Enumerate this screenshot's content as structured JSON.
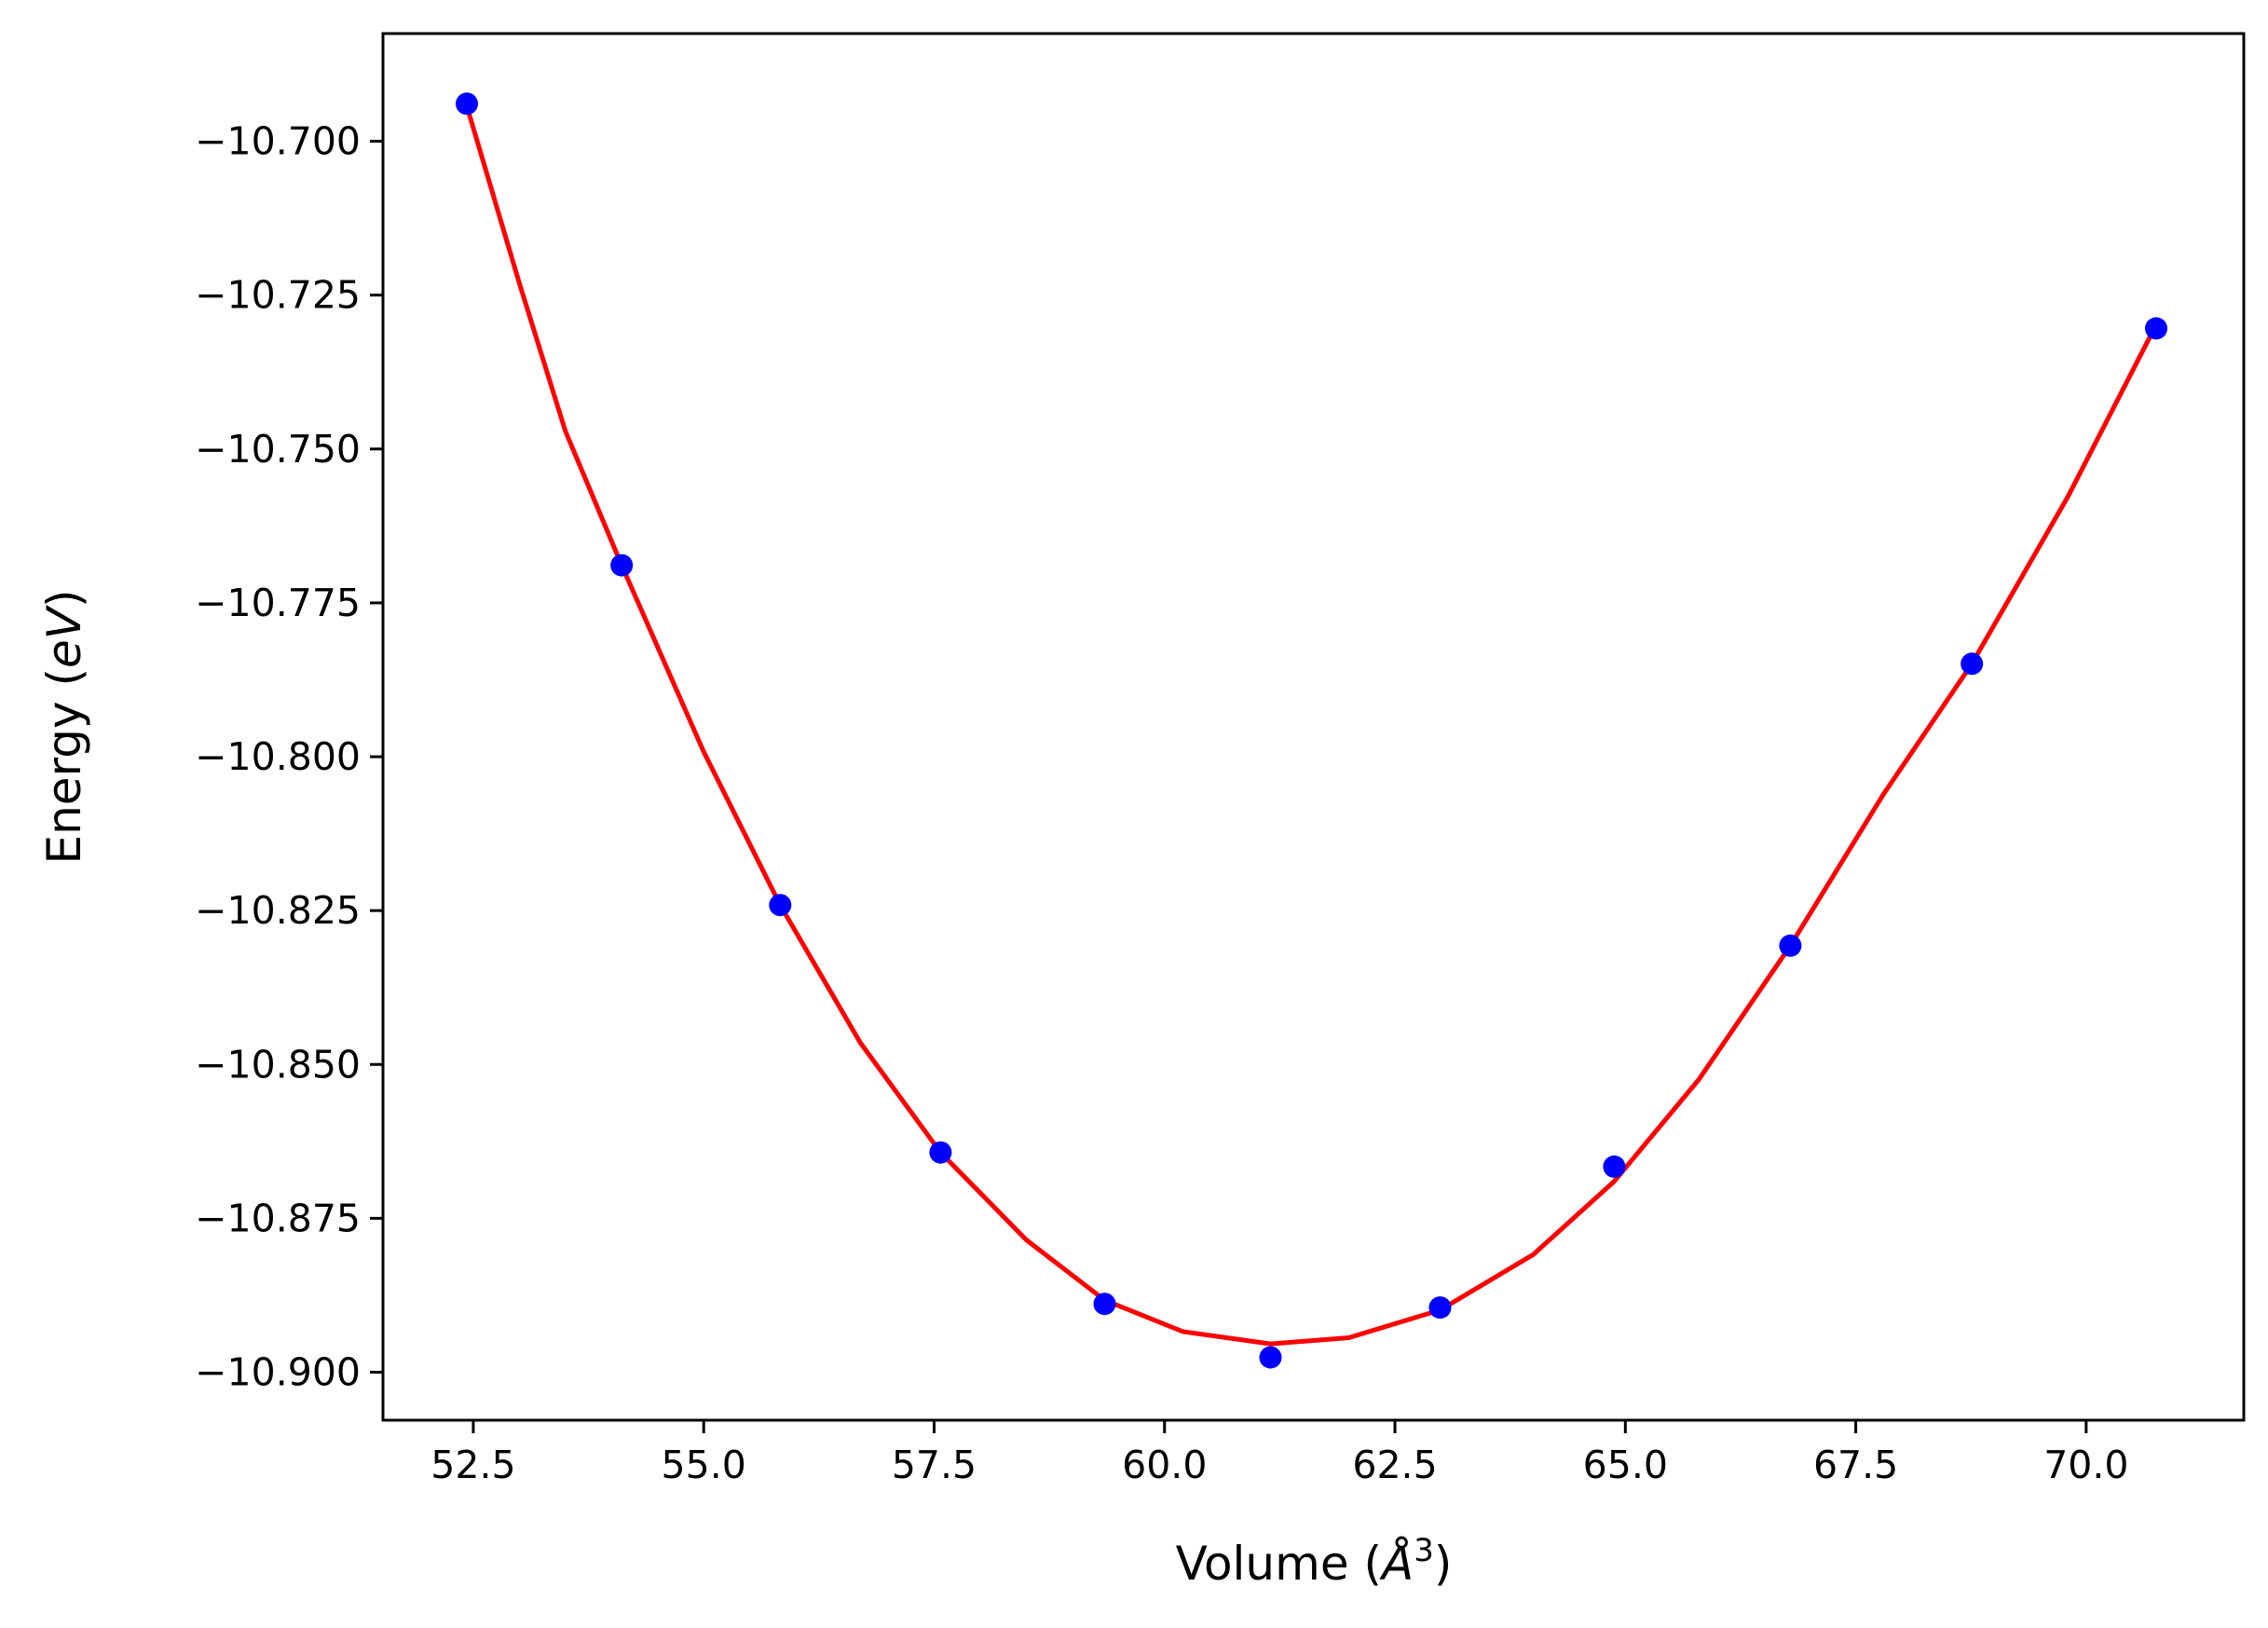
{
  "chart_data": {
    "type": "scatter",
    "title": "",
    "xlabel": "Volume (",
    "xlabel_symbol": "Å",
    "xlabel_sup": "3",
    "xlabel_close": ")",
    "ylabel": "Energy (",
    "ylabel_unit": "eV",
    "ylabel_close": ")",
    "xlim": [
      51.52,
      71.71
    ],
    "ylim": [
      -10.9078,
      -10.6825
    ],
    "xticks": [
      52.5,
      55.0,
      57.5,
      60.0,
      62.5,
      65.0,
      67.5,
      70.0
    ],
    "xtick_labels": [
      "52.5",
      "55.0",
      "57.5",
      "60.0",
      "62.5",
      "65.0",
      "67.5",
      "70.0"
    ],
    "yticks": [
      -10.7,
      -10.725,
      -10.75,
      -10.775,
      -10.8,
      -10.825,
      -10.85,
      -10.875,
      -10.9
    ],
    "ytick_labels": [
      "−10.700",
      "−10.725",
      "−10.750",
      "−10.775",
      "−10.800",
      "−10.825",
      "−10.850",
      "−10.875",
      "−10.900"
    ],
    "grid": false,
    "legend": null,
    "series": [
      {
        "kind": "points",
        "color": "#0000ff",
        "x": [
          52.43,
          54.11,
          55.83,
          57.57,
          59.35,
          61.15,
          62.99,
          64.88,
          66.79,
          68.76,
          70.76
        ],
        "y": [
          -10.6939,
          -10.7689,
          -10.8241,
          -10.8643,
          -10.8889,
          -10.8976,
          -10.8895,
          -10.8666,
          -10.8307,
          -10.7849,
          -10.7304
        ]
      },
      {
        "kind": "fit-curve",
        "color": "#ff0000",
        "x": [
          52.43,
          53.0,
          53.5,
          54.11,
          55.0,
          55.83,
          56.7,
          57.57,
          58.5,
          59.35,
          60.2,
          61.15,
          62.0,
          62.99,
          64.0,
          64.88,
          65.8,
          66.79,
          67.8,
          68.76,
          69.8,
          70.76
        ],
        "y": [
          -10.6943,
          -10.7231,
          -10.7471,
          -10.7689,
          -10.7992,
          -10.8241,
          -10.8465,
          -10.8643,
          -10.8785,
          -10.8883,
          -10.8934,
          -10.8954,
          -10.8944,
          -10.8899,
          -10.8809,
          -10.869,
          -10.8524,
          -10.8307,
          -10.8061,
          -10.7849,
          -10.7578,
          -10.7298
        ]
      }
    ]
  }
}
